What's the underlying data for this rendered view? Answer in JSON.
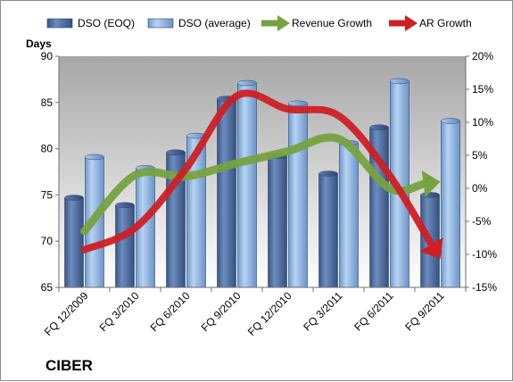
{
  "chart_data": {
    "type": "bar",
    "company": "CIBER",
    "ylabel": "Days",
    "categories": [
      "FQ 12/2009",
      "FQ 3/2010",
      "FQ 6/2010",
      "FQ 9/2010",
      "FQ 12/2010",
      "FQ 3/2011",
      "FQ 6/2011",
      "FQ 9/2011"
    ],
    "ylim": [
      65,
      90
    ],
    "yticks": [
      "65",
      "70",
      "75",
      "80",
      "85",
      "90"
    ],
    "y2lim": [
      -15,
      20
    ],
    "y2ticks": [
      "-15%",
      "-10%",
      "-5%",
      "0%",
      "5%",
      "10%",
      "15%",
      "20%"
    ],
    "legend_position": "top",
    "grid": false,
    "series": [
      {
        "name": "DSO (EOQ)",
        "kind": "bar",
        "axis": "left",
        "color": "#4f6fa0",
        "values": [
          74.7,
          73.9,
          79.6,
          85.4,
          79.2,
          77.3,
          82.3,
          75.0
        ]
      },
      {
        "name": "DSO (average)",
        "kind": "bar",
        "axis": "left",
        "color": "#8cb4e2",
        "values": [
          79.1,
          77.9,
          81.4,
          87.1,
          84.9,
          80.6,
          87.3,
          83.0
        ]
      },
      {
        "name": "Revenue Growth",
        "kind": "line-arrow",
        "axis": "right",
        "color": "#77a240",
        "values": [
          -6.5,
          2.0,
          1.8,
          3.8,
          5.6,
          7.5,
          0.0,
          1.0
        ]
      },
      {
        "name": "AR Growth",
        "kind": "line-arrow",
        "axis": "right",
        "color": "#cf1f24",
        "values": [
          -9.3,
          -6.0,
          3.0,
          14.0,
          12.0,
          11.0,
          2.0,
          -10.7
        ]
      }
    ]
  }
}
